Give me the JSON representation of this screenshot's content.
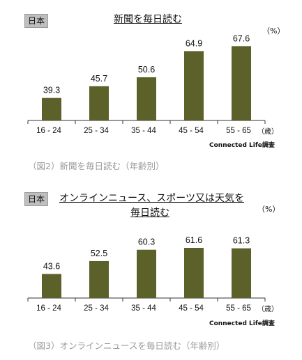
{
  "chart_data": [
    {
      "type": "bar",
      "region_label": "日本",
      "title_lines": [
        "新聞を毎日読む"
      ],
      "unit": "（%）",
      "categories": [
        "16 - 24",
        "25 - 34",
        "35 - 44",
        "45 - 54",
        "55 - 65"
      ],
      "values": [
        39.3,
        45.7,
        50.6,
        64.9,
        67.6
      ],
      "value_labels": [
        "39.3",
        "45.7",
        "50.6",
        "64.9",
        "67.6"
      ],
      "x_unit": "（歳）",
      "source": "Connected Life調査",
      "caption": "（図2）新聞を毎日読む（年齢別）",
      "bar_color": "#5b6129",
      "ylim": [
        0,
        70
      ],
      "baseline": 27
    },
    {
      "type": "bar",
      "region_label": "日本",
      "title_lines": [
        "オンラインニュース、スポーツ又は天気を",
        "毎日読む"
      ],
      "unit": "（%）",
      "categories": [
        "16 - 24",
        "25 - 34",
        "35 - 44",
        "45 - 54",
        "55 - 65"
      ],
      "values": [
        43.6,
        52.5,
        60.3,
        61.6,
        61.3
      ],
      "value_labels": [
        "43.6",
        "52.5",
        "60.3",
        "61.6",
        "61.3"
      ],
      "x_unit": "（歳）",
      "source": "Connected Life調査",
      "caption": "（図3）オンラインニュースを毎日読む（年齢別）",
      "bar_color": "#5b6129",
      "ylim": [
        0,
        64
      ],
      "baseline": 27
    }
  ]
}
